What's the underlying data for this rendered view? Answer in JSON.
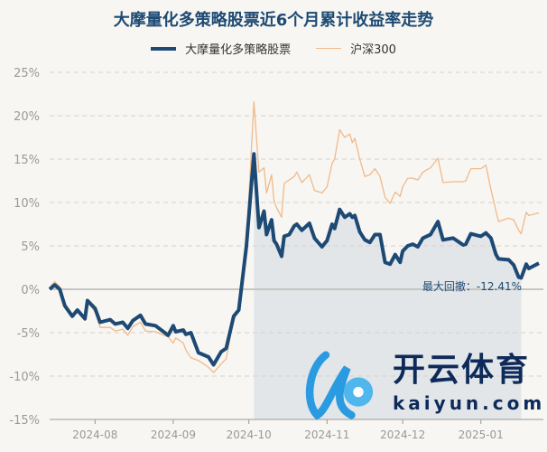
{
  "chart_data": {
    "type": "line",
    "title": "大摩量化多策略股票近6个月累计收益率走势",
    "xlabel": "",
    "ylabel": "",
    "ylim": [
      -15,
      25
    ],
    "yticks": [
      "25%",
      "20%",
      "15%",
      "10%",
      "5%",
      "0%",
      "-5%",
      "-10%",
      "-15%"
    ],
    "yticks_values": [
      25,
      20,
      15,
      10,
      5,
      0,
      -5,
      -10,
      -15
    ],
    "xticks": [
      "2024-08",
      "2024-09",
      "2024-10",
      "2024-11",
      "2024-12",
      "2025-01"
    ],
    "xlim": [
      "2024-07-14",
      "2025-01-24"
    ],
    "grid": true,
    "legend": "top",
    "annotation": "最大回撤：-12.41%",
    "drawdown_period": [
      "2024-10-03",
      "2025-01-17"
    ],
    "x": [
      "2024-07-14",
      "2024-07-16",
      "2024-07-18",
      "2024-07-20",
      "2024-07-23",
      "2024-07-25",
      "2024-07-28",
      "2024-07-29",
      "2024-08-01",
      "2024-08-03",
      "2024-08-07",
      "2024-08-09",
      "2024-08-12",
      "2024-08-14",
      "2024-08-16",
      "2024-08-19",
      "2024-08-21",
      "2024-08-25",
      "2024-08-30",
      "2024-09-01",
      "2024-09-02",
      "2024-09-05",
      "2024-09-06",
      "2024-09-08",
      "2024-09-11",
      "2024-09-15",
      "2024-09-17",
      "2024-09-20",
      "2024-09-22",
      "2024-09-25",
      "2024-09-27",
      "2024-09-30",
      "2024-10-03",
      "2024-10-05",
      "2024-10-07",
      "2024-10-08",
      "2024-10-10",
      "2024-10-11",
      "2024-10-12",
      "2024-10-14",
      "2024-10-15",
      "2024-10-17",
      "2024-10-19",
      "2024-10-20",
      "2024-10-22",
      "2024-10-25",
      "2024-10-27",
      "2024-10-30",
      "2024-11-01",
      "2024-11-03",
      "2024-11-04",
      "2024-11-06",
      "2024-11-08",
      "2024-11-10",
      "2024-11-11",
      "2024-11-12",
      "2024-11-14",
      "2024-11-16",
      "2024-11-18",
      "2024-11-20",
      "2024-11-22",
      "2024-11-24",
      "2024-11-26",
      "2024-11-28",
      "2024-11-30",
      "2024-12-01",
      "2024-12-03",
      "2024-12-05",
      "2024-12-07",
      "2024-12-09",
      "2024-12-12",
      "2024-12-15",
      "2024-12-17",
      "2024-12-21",
      "2024-12-25",
      "2024-12-26",
      "2024-12-28",
      "2025-01-01",
      "2025-01-03",
      "2025-01-05",
      "2025-01-07",
      "2025-01-08",
      "2025-01-12",
      "2025-01-14",
      "2025-01-16",
      "2025-01-17",
      "2025-01-19",
      "2025-01-20",
      "2025-01-24"
    ],
    "series": [
      {
        "name": "大摩量化多策略股票",
        "color": "#1d4a74",
        "values": [
          0,
          0.5,
          0,
          -1.9,
          -3.1,
          -2.4,
          -3.4,
          -1.3,
          -2.2,
          -3.8,
          -3.5,
          -4.0,
          -3.8,
          -4.5,
          -3.6,
          -3.0,
          -4.0,
          -4.2,
          -5.3,
          -4.2,
          -4.9,
          -4.7,
          -5.2,
          -5.0,
          -7.3,
          -7.8,
          -8.7,
          -7.2,
          -6.8,
          -3.1,
          -2.4,
          4.9,
          15.6,
          7.1,
          9.0,
          6.3,
          8.0,
          5.6,
          5.2,
          3.8,
          6.1,
          6.3,
          7.3,
          7.5,
          6.8,
          7.6,
          5.9,
          4.9,
          5.6,
          7.5,
          7.0,
          9.2,
          8.3,
          8.7,
          8.3,
          8.5,
          6.6,
          5.7,
          5.4,
          6.3,
          6.3,
          3.1,
          2.9,
          4.0,
          3.1,
          4.4,
          5.0,
          5.2,
          4.9,
          5.9,
          6.3,
          7.8,
          5.7,
          5.9,
          5.1,
          5.2,
          6.4,
          6.1,
          6.5,
          5.9,
          4.0,
          3.5,
          3.4,
          2.8,
          1.4,
          1.3,
          2.9,
          2.4,
          3.0
        ]
      },
      {
        "name": "沪深300",
        "color": "#f0b98a",
        "values": [
          0.2,
          0.9,
          0.3,
          -2.0,
          -3.0,
          -2.6,
          -3.6,
          -1.5,
          -2.6,
          -4.4,
          -4.4,
          -4.8,
          -4.6,
          -5.3,
          -4.3,
          -3.8,
          -4.8,
          -4.9,
          -5.5,
          -6.2,
          -5.6,
          -6.2,
          -7.0,
          -7.9,
          -8.2,
          -9.0,
          -9.6,
          -8.6,
          -8.0,
          -3.4,
          -2.5,
          5.0,
          21.6,
          13.5,
          14.0,
          11.1,
          13.2,
          10.2,
          9.4,
          8.3,
          12.2,
          12.6,
          13.0,
          13.5,
          12.3,
          13.2,
          11.4,
          11.1,
          11.8,
          14.5,
          15.0,
          18.4,
          17.5,
          17.9,
          16.9,
          17.4,
          15.0,
          13.0,
          13.2,
          13.9,
          13.0,
          10.6,
          9.9,
          11.2,
          10.7,
          11.8,
          12.8,
          12.8,
          12.6,
          13.5,
          14.0,
          15.1,
          12.3,
          12.4,
          12.4,
          12.5,
          13.9,
          13.9,
          14.3,
          11.5,
          9.0,
          7.8,
          8.2,
          8.0,
          6.8,
          6.4,
          8.9,
          8.5,
          8.8
        ]
      }
    ],
    "drawdown_fill_color": "#e2e6e9",
    "grid_color": "#d5d2cc"
  },
  "logo": {
    "cn": "开云体育",
    "en": "kaiyun.com"
  }
}
